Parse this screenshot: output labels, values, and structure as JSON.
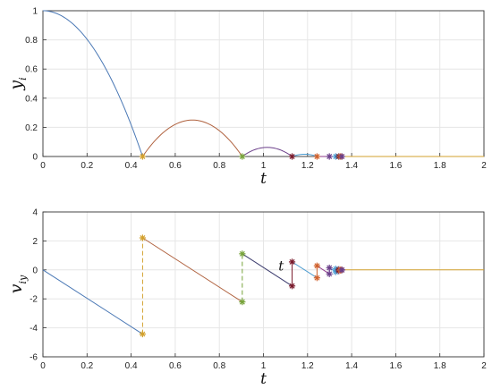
{
  "chart_data": [
    {
      "type": "line",
      "xlabel": "t",
      "ylabel": "y",
      "ylabel_sub": "i",
      "xlim": [
        0,
        2
      ],
      "ylim": [
        0,
        1
      ],
      "xticks": [
        "0",
        "0.2",
        "0.4",
        "0.6",
        "0.8",
        "1",
        "1.2",
        "1.4",
        "1.6",
        "1.8",
        "2"
      ],
      "yticks": [
        "0",
        "0.2",
        "0.4",
        "0.6",
        "0.8",
        "1"
      ],
      "grid": true,
      "colors": [
        "#4A78B5",
        "#B0623F",
        "#6B3F8A",
        "#D3A12E",
        "#77A33A",
        "#7A1B2C"
      ],
      "series": [
        {
          "t": [
            0,
            0.452
          ],
          "kind": "parabola",
          "y_peak": 1.0,
          "t_peak": 0.0,
          "color": "#4A78B5"
        },
        {
          "t": [
            0.452,
            0.904
          ],
          "kind": "parabola",
          "y_peak": 0.25,
          "t_peak": 0.678,
          "color": "#B0623F"
        },
        {
          "t": [
            0.904,
            1.13
          ],
          "kind": "parabola",
          "y_peak": 0.0625,
          "t_peak": 1.017,
          "color": "#6B3F8A"
        },
        {
          "t": [
            1.13,
            1.243
          ],
          "kind": "parabola",
          "y_peak": 0.0156,
          "t_peak": 1.187,
          "color": "#4A9BD0"
        },
        {
          "t": [
            1.243,
            1.36
          ],
          "kind": "flat",
          "color": "#8E3A8A"
        },
        {
          "t": [
            1.36,
            2.0
          ],
          "kind": "flat",
          "color": "#D3A12E"
        }
      ],
      "impacts": [
        {
          "t": 0.452,
          "y": 0,
          "color": "#D3A12E"
        },
        {
          "t": 0.904,
          "y": 0,
          "color": "#77A33A"
        },
        {
          "t": 1.13,
          "y": 0,
          "color": "#7A1B2C"
        },
        {
          "t": 1.243,
          "y": 0,
          "color": "#D0622E"
        },
        {
          "t": 1.299,
          "y": 0,
          "color": "#6B3F8A"
        },
        {
          "t": 1.328,
          "y": 0,
          "color": "#4A9BD0"
        },
        {
          "t": 1.342,
          "y": 0,
          "color": "#7A1B2C"
        },
        {
          "t": 1.35,
          "y": 0,
          "color": "#D0622E"
        },
        {
          "t": 1.356,
          "y": 0,
          "color": "#6B3F8A"
        }
      ]
    },
    {
      "type": "line",
      "xlabel": "t",
      "ylabel": "v",
      "ylabel_sub": "iy",
      "xlim": [
        0,
        2
      ],
      "ylim": [
        -6,
        4
      ],
      "xticks": [
        "0",
        "0.2",
        "0.4",
        "0.6",
        "0.8",
        "1",
        "1.2",
        "1.4",
        "1.6",
        "1.8",
        "2"
      ],
      "yticks": [
        "-6",
        "-4",
        "-2",
        "0",
        "2",
        "4"
      ],
      "grid": true,
      "segments": [
        {
          "t": [
            0,
            0.452
          ],
          "v": [
            0,
            -4.43
          ],
          "color": "#4A78B5"
        },
        {
          "t": [
            0.452,
            0.904
          ],
          "v": [
            2.21,
            -2.21
          ],
          "color": "#B0623F"
        },
        {
          "t": [
            0.904,
            1.13
          ],
          "v": [
            1.11,
            -1.11
          ],
          "color": "#3C3C6E"
        },
        {
          "t": [
            1.13,
            1.243
          ],
          "v": [
            0.55,
            -0.55
          ],
          "color": "#4A9BD0"
        },
        {
          "t": [
            1.243,
            1.299
          ],
          "v": [
            0.28,
            -0.28
          ],
          "color": "#8E3A8A"
        },
        {
          "t": [
            1.299,
            1.328
          ],
          "v": [
            0.14,
            -0.14
          ],
          "color": "#4A9BD0"
        },
        {
          "t": [
            1.328,
            1.342
          ],
          "v": [
            0.07,
            -0.07
          ],
          "color": "#8E3A8A"
        },
        {
          "t": [
            1.342,
            1.36
          ],
          "v": [
            0.03,
            0.0
          ],
          "color": "#4A9BD0"
        },
        {
          "t": [
            1.36,
            2.0
          ],
          "v": [
            0.0,
            0.0
          ],
          "color": "#D3A12E"
        }
      ],
      "jumps": [
        {
          "t": 0.452,
          "v": [
            -4.43,
            2.21
          ],
          "color": "#D3A12E"
        },
        {
          "t": 0.904,
          "v": [
            -2.21,
            1.11
          ],
          "color": "#77A33A"
        },
        {
          "t": 1.13,
          "v": [
            -1.11,
            0.55
          ],
          "color": "#7A1B2C"
        },
        {
          "t": 1.243,
          "v": [
            -0.55,
            0.28
          ],
          "color": "#D0622E"
        },
        {
          "t": 1.299,
          "v": [
            -0.28,
            0.14
          ],
          "color": "#6B3F8A"
        },
        {
          "t": 1.328,
          "v": [
            -0.14,
            0.07
          ],
          "color": "#4A9BD0"
        },
        {
          "t": 1.342,
          "v": [
            -0.07,
            0.03
          ],
          "color": "#7A1B2C"
        },
        {
          "t": 1.35,
          "v": [
            -0.03,
            0.01
          ],
          "color": "#D0622E"
        },
        {
          "t": 1.356,
          "v": [
            -0.01,
            0.0
          ],
          "color": "#6B3F8A"
        }
      ],
      "annotation": {
        "text": "t",
        "t": 1.08,
        "v": 0.2
      }
    }
  ]
}
